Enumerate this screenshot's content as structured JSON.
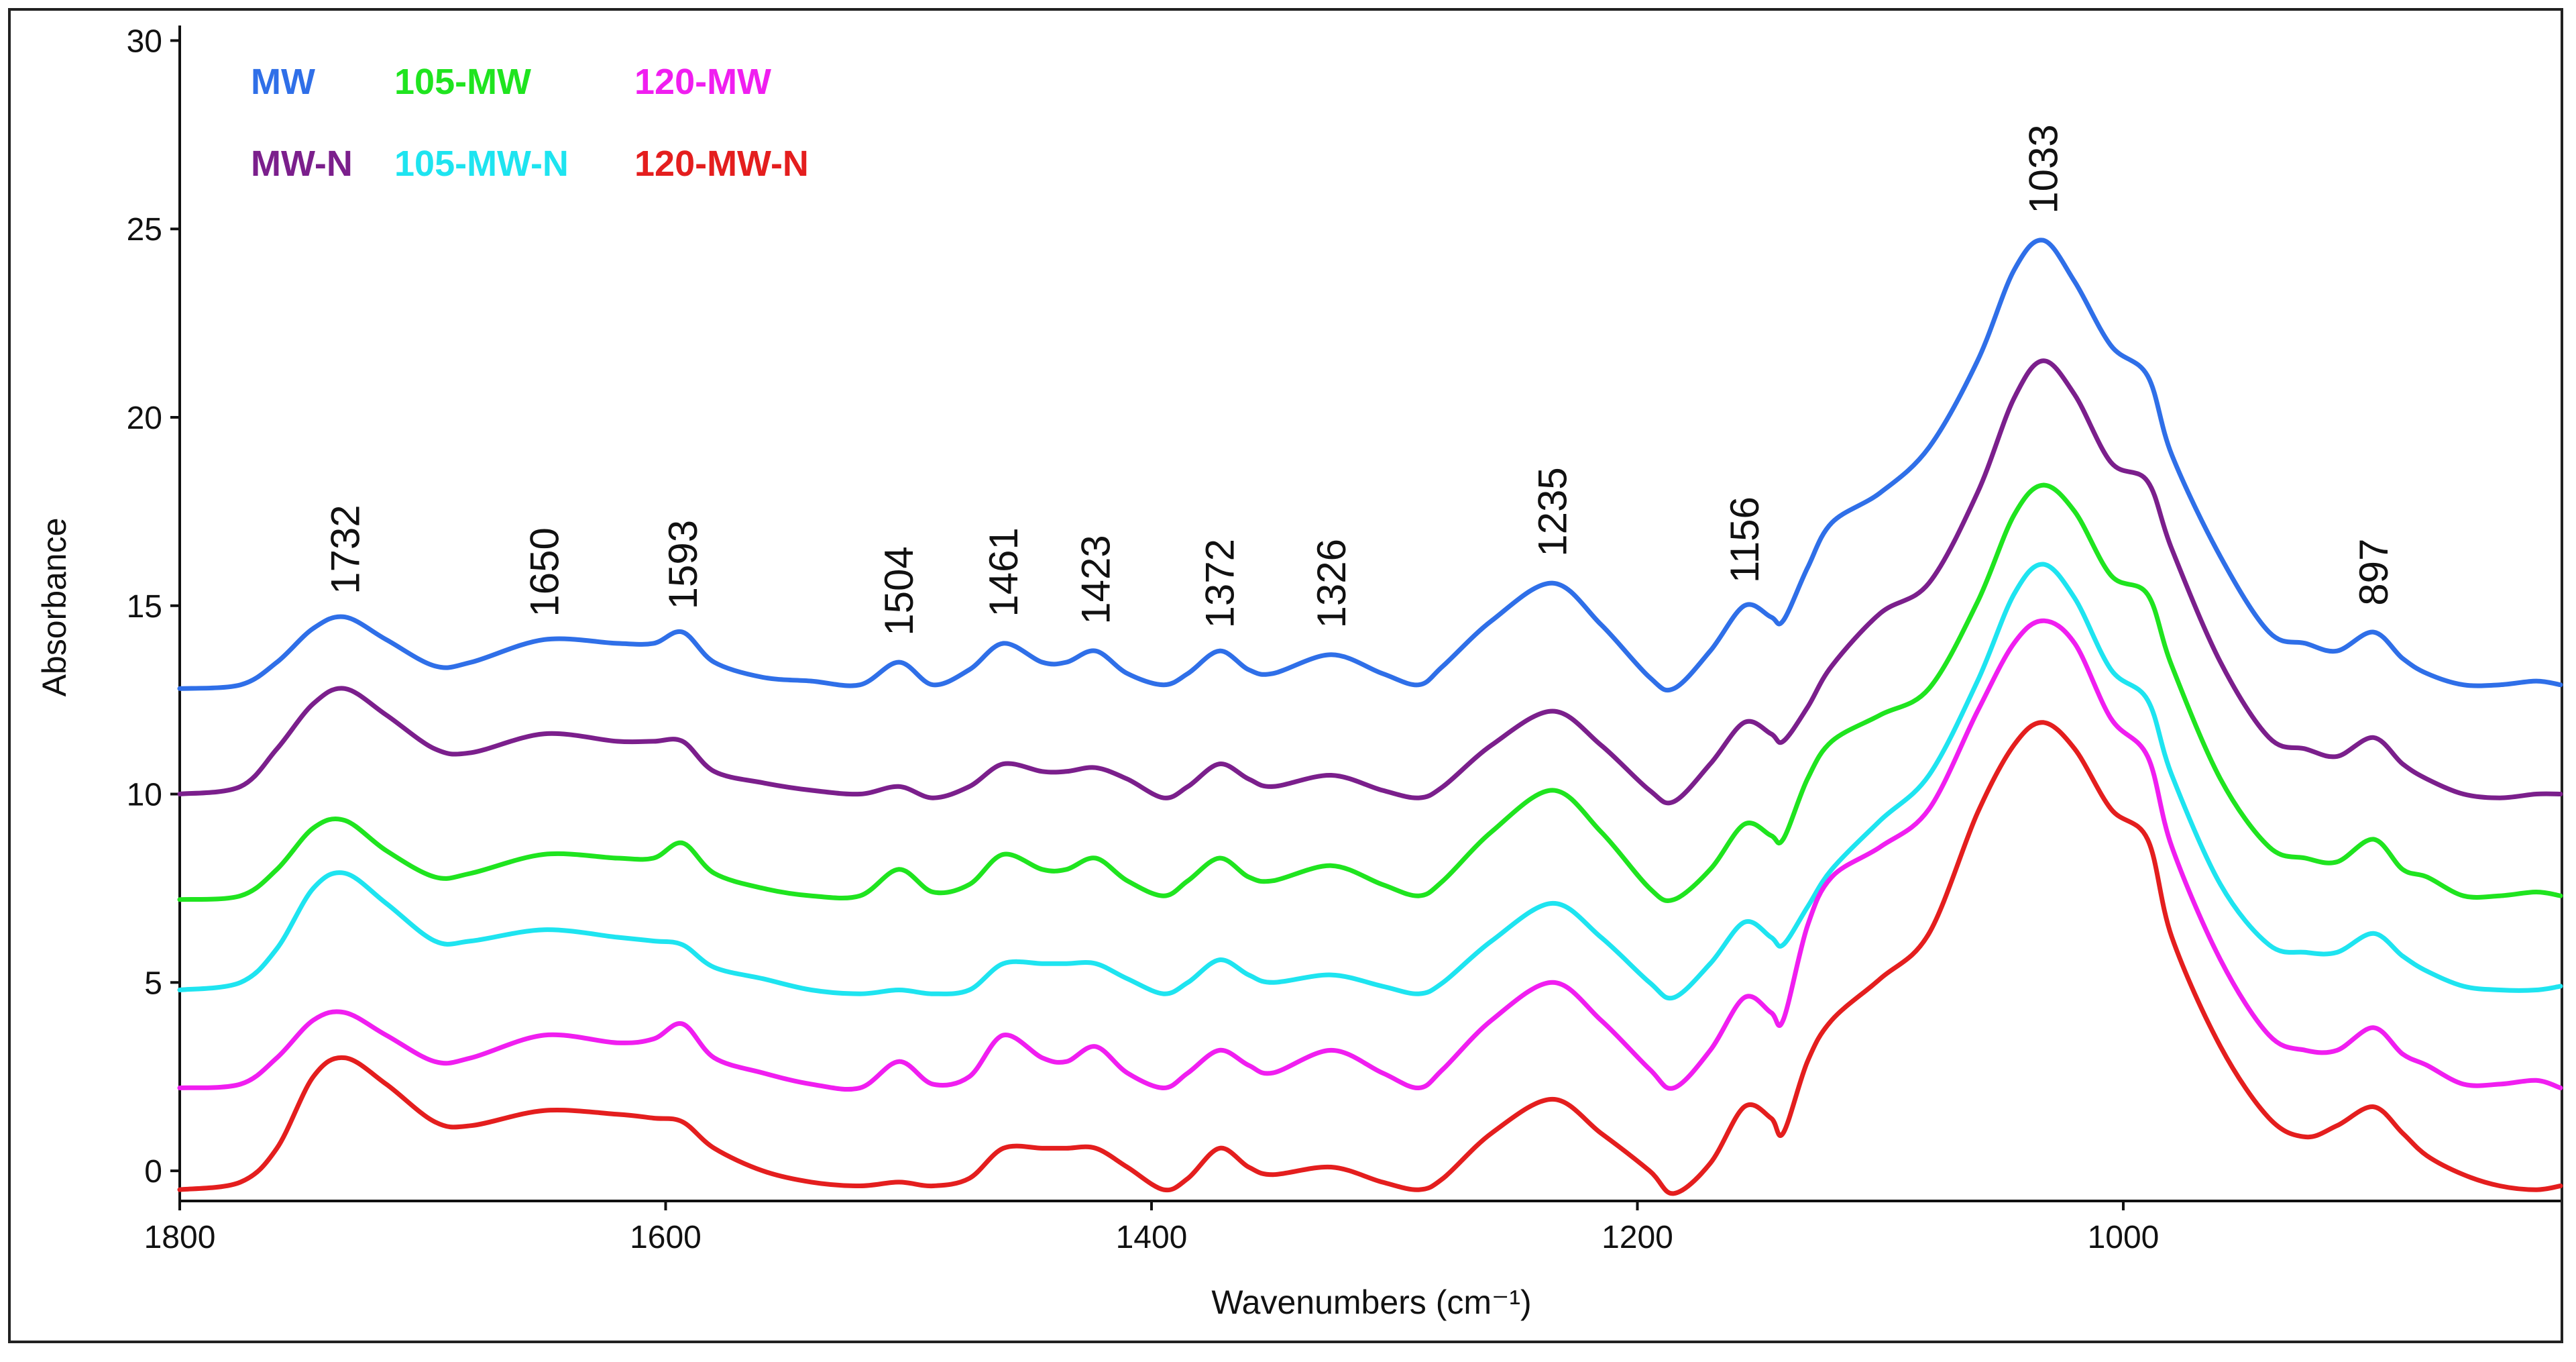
{
  "chart_data": {
    "type": "line",
    "title": "",
    "xlabel": "Wavenumbers (cm⁻¹)",
    "ylabel": "Absorbance",
    "xlim": [
      1800,
      820
    ],
    "ylim": [
      -0.8,
      30.4
    ],
    "xticks": [
      1800,
      1600,
      1400,
      1200,
      1000
    ],
    "xtick_labels": [
      "1800",
      "1600",
      "1400",
      "1200",
      "1000"
    ],
    "yticks": [
      0,
      5,
      10,
      15,
      20,
      25,
      30
    ],
    "ytick_labels": [
      "0",
      "5",
      "10",
      "15",
      "20",
      "25",
      "30"
    ],
    "legend_position": "top-left",
    "grid": false,
    "peak_labels": [
      {
        "x": 1732,
        "label": "1732",
        "y": 15.3
      },
      {
        "x": 1650,
        "label": "1650",
        "y": 14.7
      },
      {
        "x": 1593,
        "label": "1593",
        "y": 14.9
      },
      {
        "x": 1504,
        "label": "1504",
        "y": 14.2
      },
      {
        "x": 1461,
        "label": "1461",
        "y": 14.7
      },
      {
        "x": 1423,
        "label": "1423",
        "y": 14.5
      },
      {
        "x": 1372,
        "label": "1372",
        "y": 14.4
      },
      {
        "x": 1326,
        "label": "1326",
        "y": 14.4
      },
      {
        "x": 1235,
        "label": "1235",
        "y": 16.3
      },
      {
        "x": 1156,
        "label": "1156",
        "y": 15.6
      },
      {
        "x": 1033,
        "label": "1033",
        "y": 25.4
      },
      {
        "x": 897,
        "label": "897",
        "y": 15.0
      }
    ],
    "x": [
      1800,
      1775,
      1760,
      1745,
      1732,
      1715,
      1695,
      1680,
      1650,
      1620,
      1605,
      1593,
      1580,
      1560,
      1540,
      1520,
      1504,
      1490,
      1475,
      1461,
      1445,
      1435,
      1423,
      1410,
      1395,
      1385,
      1372,
      1360,
      1350,
      1326,
      1305,
      1290,
      1280,
      1260,
      1235,
      1215,
      1195,
      1185,
      1170,
      1156,
      1145,
      1140,
      1130,
      1120,
      1100,
      1080,
      1060,
      1045,
      1033,
      1020,
      1005,
      990,
      980,
      960,
      940,
      925,
      912,
      897,
      885,
      875,
      860,
      845,
      830,
      820
    ],
    "series": [
      {
        "name": "MW",
        "color": "#2f6fe8",
        "values": [
          12.8,
          12.9,
          13.5,
          14.4,
          14.7,
          14.1,
          13.4,
          13.5,
          14.1,
          14.0,
          14.0,
          14.3,
          13.5,
          13.1,
          13.0,
          12.9,
          13.5,
          12.9,
          13.3,
          14.0,
          13.5,
          13.5,
          13.8,
          13.2,
          12.9,
          13.2,
          13.8,
          13.3,
          13.2,
          13.7,
          13.2,
          12.9,
          13.4,
          14.6,
          15.6,
          14.5,
          13.1,
          12.8,
          13.8,
          15.0,
          14.7,
          14.6,
          16.0,
          17.2,
          18.0,
          19.2,
          21.5,
          23.9,
          24.7,
          23.6,
          21.9,
          21.1,
          19.0,
          16.3,
          14.3,
          14.0,
          13.8,
          14.3,
          13.6,
          13.2,
          12.9,
          12.9,
          13.0,
          12.9
        ]
      },
      {
        "name": "MW-N",
        "color": "#7b1f8c",
        "values": [
          10.0,
          10.2,
          11.2,
          12.4,
          12.8,
          12.1,
          11.2,
          11.1,
          11.6,
          11.4,
          11.4,
          11.4,
          10.6,
          10.3,
          10.1,
          10.0,
          10.2,
          9.9,
          10.2,
          10.8,
          10.6,
          10.6,
          10.7,
          10.4,
          9.9,
          10.2,
          10.8,
          10.4,
          10.2,
          10.5,
          10.1,
          9.9,
          10.2,
          11.3,
          12.2,
          11.3,
          10.1,
          9.8,
          10.8,
          11.9,
          11.6,
          11.4,
          12.3,
          13.4,
          14.8,
          15.6,
          18.0,
          20.5,
          21.5,
          20.6,
          18.8,
          18.3,
          16.5,
          13.5,
          11.5,
          11.2,
          11.0,
          11.5,
          10.8,
          10.4,
          10.0,
          9.9,
          10.0,
          10.0
        ]
      },
      {
        "name": "105-MW",
        "color": "#1fe41f",
        "values": [
          7.2,
          7.3,
          8.0,
          9.1,
          9.3,
          8.5,
          7.8,
          7.9,
          8.4,
          8.3,
          8.3,
          8.7,
          7.9,
          7.5,
          7.3,
          7.3,
          8.0,
          7.4,
          7.6,
          8.4,
          8.0,
          8.0,
          8.3,
          7.7,
          7.3,
          7.7,
          8.3,
          7.8,
          7.7,
          8.1,
          7.6,
          7.3,
          7.7,
          9.0,
          10.1,
          9.0,
          7.5,
          7.2,
          8.0,
          9.2,
          8.9,
          8.8,
          10.4,
          11.4,
          12.1,
          12.8,
          15.1,
          17.4,
          18.2,
          17.5,
          15.8,
          15.3,
          13.4,
          10.4,
          8.6,
          8.3,
          8.2,
          8.8,
          8.0,
          7.8,
          7.3,
          7.3,
          7.4,
          7.3
        ]
      },
      {
        "name": "105-MW-N",
        "color": "#1ee4f0",
        "values": [
          4.8,
          5.0,
          5.9,
          7.5,
          7.9,
          7.1,
          6.1,
          6.1,
          6.4,
          6.2,
          6.1,
          6.0,
          5.4,
          5.1,
          4.8,
          4.7,
          4.8,
          4.7,
          4.8,
          5.5,
          5.5,
          5.5,
          5.5,
          5.1,
          4.7,
          5.0,
          5.6,
          5.2,
          5.0,
          5.2,
          4.9,
          4.7,
          5.0,
          6.1,
          7.1,
          6.2,
          5.0,
          4.6,
          5.5,
          6.6,
          6.2,
          6.0,
          7.0,
          8.0,
          9.3,
          10.5,
          13.0,
          15.3,
          16.1,
          15.2,
          13.3,
          12.5,
          10.5,
          7.6,
          6.0,
          5.8,
          5.8,
          6.3,
          5.7,
          5.3,
          4.9,
          4.8,
          4.8,
          4.9
        ]
      },
      {
        "name": "120-MW",
        "color": "#f01ef0",
        "values": [
          2.2,
          2.3,
          3.0,
          4.0,
          4.2,
          3.6,
          2.9,
          3.0,
          3.6,
          3.4,
          3.5,
          3.9,
          3.0,
          2.6,
          2.3,
          2.2,
          2.9,
          2.3,
          2.5,
          3.6,
          3.0,
          2.9,
          3.3,
          2.6,
          2.2,
          2.6,
          3.2,
          2.8,
          2.6,
          3.2,
          2.6,
          2.2,
          2.7,
          4.0,
          5.0,
          4.0,
          2.7,
          2.2,
          3.2,
          4.6,
          4.2,
          4.0,
          6.5,
          7.8,
          8.6,
          9.6,
          12.2,
          14.0,
          14.6,
          14.0,
          12.0,
          11.0,
          8.6,
          5.6,
          3.6,
          3.2,
          3.2,
          3.8,
          3.1,
          2.8,
          2.3,
          2.3,
          2.4,
          2.2
        ]
      },
      {
        "name": "120-MW-N",
        "color": "#e41e1e",
        "values": [
          -0.5,
          -0.3,
          0.6,
          2.5,
          3.0,
          2.3,
          1.3,
          1.2,
          1.6,
          1.5,
          1.4,
          1.3,
          0.6,
          0.0,
          -0.3,
          -0.4,
          -0.3,
          -0.4,
          -0.2,
          0.6,
          0.6,
          0.6,
          0.6,
          0.1,
          -0.5,
          -0.2,
          0.6,
          0.1,
          -0.1,
          0.1,
          -0.3,
          -0.5,
          -0.2,
          1.0,
          1.9,
          1.0,
          0.0,
          -0.6,
          0.2,
          1.7,
          1.4,
          1.0,
          2.9,
          4.0,
          5.1,
          6.3,
          9.5,
          11.3,
          11.9,
          11.2,
          9.6,
          8.8,
          6.2,
          3.3,
          1.4,
          0.9,
          1.2,
          1.7,
          1.0,
          0.4,
          -0.1,
          -0.4,
          -0.5,
          -0.4
        ]
      }
    ],
    "legend": [
      {
        "label": "MW",
        "color": "#2f6fe8",
        "row": 0,
        "col": 0
      },
      {
        "label": "105-MW",
        "color": "#1fe41f",
        "row": 0,
        "col": 1
      },
      {
        "label": "120-MW",
        "color": "#f01ef0",
        "row": 0,
        "col": 2
      },
      {
        "label": "MW-N",
        "color": "#7b1f8c",
        "row": 1,
        "col": 0
      },
      {
        "label": "105-MW-N",
        "color": "#1ee4f0",
        "row": 1,
        "col": 1
      },
      {
        "label": "120-MW-N",
        "color": "#e41e1e",
        "row": 1,
        "col": 2
      }
    ]
  }
}
